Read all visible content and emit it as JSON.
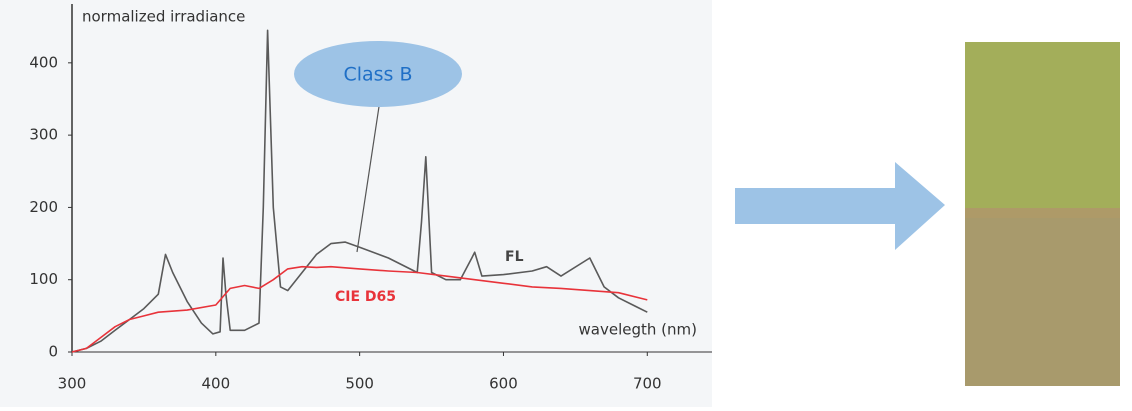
{
  "chart_data": {
    "type": "line",
    "y_label": "normalized irradiance",
    "x_label": "wavelegth (nm)",
    "annotation": "Class B",
    "xlim": [
      300,
      745
    ],
    "ylim": [
      0,
      480
    ],
    "xticks": [
      300,
      400,
      500,
      600,
      700
    ],
    "yticks": [
      0,
      100,
      200,
      300,
      400
    ],
    "series": [
      {
        "name": "FL",
        "color": "#5a5a5a",
        "x": [
          300,
          310,
          320,
          330,
          340,
          350,
          360,
          365,
          370,
          380,
          390,
          398,
          403,
          405,
          407,
          410,
          420,
          430,
          433,
          436,
          440,
          445,
          450,
          460,
          470,
          480,
          490,
          500,
          520,
          540,
          543,
          546,
          550,
          560,
          570,
          578,
          580,
          585,
          600,
          620,
          630,
          640,
          660,
          670,
          680,
          700
        ],
        "values": [
          0,
          5,
          15,
          30,
          45,
          60,
          80,
          135,
          110,
          70,
          40,
          25,
          28,
          130,
          80,
          30,
          30,
          40,
          200,
          445,
          200,
          90,
          85,
          110,
          135,
          150,
          152,
          145,
          130,
          110,
          180,
          270,
          110,
          100,
          100,
          130,
          138,
          105,
          107,
          112,
          118,
          105,
          130,
          90,
          75,
          55
        ]
      },
      {
        "name": "CIE D65",
        "color": "#e8333a",
        "x": [
          300,
          310,
          320,
          330,
          340,
          350,
          360,
          380,
          400,
          410,
          420,
          430,
          440,
          450,
          460,
          470,
          480,
          500,
          520,
          540,
          560,
          580,
          600,
          620,
          640,
          660,
          680,
          700
        ],
        "values": [
          0,
          5,
          20,
          35,
          45,
          50,
          55,
          58,
          65,
          88,
          92,
          88,
          100,
          115,
          118,
          117,
          118,
          115,
          112,
          110,
          105,
          100,
          95,
          90,
          88,
          85,
          82,
          72
        ]
      }
    ]
  }
}
